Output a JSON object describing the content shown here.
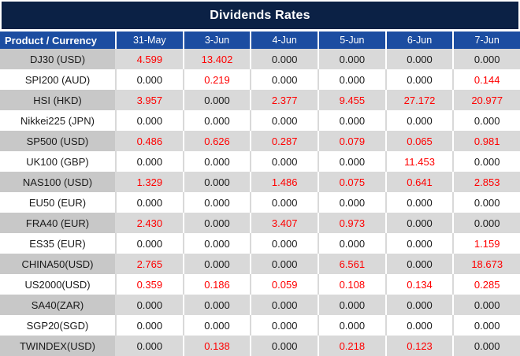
{
  "title": "Dividends Rates",
  "colors": {
    "title_bg": "#0b2145",
    "header_bg": "#1c4da1",
    "row_gray": "#d9d9d9",
    "label_gray": "#c8c8c8",
    "sep_on_white": "#d9d9d9",
    "value_red": "#ff0000",
    "value_black": "#1a1a1a"
  },
  "table": {
    "product_header": "Product / Currency",
    "date_headers": [
      "31-May",
      "3-Jun",
      "4-Jun",
      "5-Jun",
      "6-Jun",
      "7-Jun"
    ],
    "rows": [
      {
        "product": "DJ30 (USD)",
        "values": [
          "4.599",
          "13.402",
          "0.000",
          "0.000",
          "0.000",
          "0.000"
        ],
        "red": [
          1,
          1,
          0,
          0,
          0,
          0
        ]
      },
      {
        "product": "SPI200 (AUD)",
        "values": [
          "0.000",
          "0.219",
          "0.000",
          "0.000",
          "0.000",
          "0.144"
        ],
        "red": [
          0,
          1,
          0,
          0,
          0,
          1
        ]
      },
      {
        "product": "HSI (HKD)",
        "values": [
          "3.957",
          "0.000",
          "2.377",
          "9.455",
          "27.172",
          "20.977"
        ],
        "red": [
          1,
          0,
          1,
          1,
          1,
          1
        ]
      },
      {
        "product": "Nikkei225 (JPN)",
        "values": [
          "0.000",
          "0.000",
          "0.000",
          "0.000",
          "0.000",
          "0.000"
        ],
        "red": [
          0,
          0,
          0,
          0,
          0,
          0
        ]
      },
      {
        "product": "SP500 (USD)",
        "values": [
          "0.486",
          "0.626",
          "0.287",
          "0.079",
          "0.065",
          "0.981"
        ],
        "red": [
          1,
          1,
          1,
          1,
          1,
          1
        ]
      },
      {
        "product": "UK100 (GBP)",
        "values": [
          "0.000",
          "0.000",
          "0.000",
          "0.000",
          "11.453",
          "0.000"
        ],
        "red": [
          0,
          0,
          0,
          0,
          1,
          0
        ]
      },
      {
        "product": "NAS100 (USD)",
        "values": [
          "1.329",
          "0.000",
          "1.486",
          "0.075",
          "0.641",
          "2.853"
        ],
        "red": [
          1,
          0,
          1,
          1,
          1,
          1
        ]
      },
      {
        "product": "EU50 (EUR)",
        "values": [
          "0.000",
          "0.000",
          "0.000",
          "0.000",
          "0.000",
          "0.000"
        ],
        "red": [
          0,
          0,
          0,
          0,
          0,
          0
        ]
      },
      {
        "product": "FRA40 (EUR)",
        "values": [
          "2.430",
          "0.000",
          "3.407",
          "0.973",
          "0.000",
          "0.000"
        ],
        "red": [
          1,
          0,
          1,
          1,
          0,
          0
        ]
      },
      {
        "product": "ES35 (EUR)",
        "values": [
          "0.000",
          "0.000",
          "0.000",
          "0.000",
          "0.000",
          "1.159"
        ],
        "red": [
          0,
          0,
          0,
          0,
          0,
          1
        ]
      },
      {
        "product": "CHINA50(USD)",
        "values": [
          "2.765",
          "0.000",
          "0.000",
          "6.561",
          "0.000",
          "18.673"
        ],
        "red": [
          1,
          0,
          0,
          1,
          0,
          1
        ]
      },
      {
        "product": "US2000(USD)",
        "values": [
          "0.359",
          "0.186",
          "0.059",
          "0.108",
          "0.134",
          "0.285"
        ],
        "red": [
          1,
          1,
          1,
          1,
          1,
          1
        ]
      },
      {
        "product": "SA40(ZAR)",
        "values": [
          "0.000",
          "0.000",
          "0.000",
          "0.000",
          "0.000",
          "0.000"
        ],
        "red": [
          0,
          0,
          0,
          0,
          0,
          0
        ]
      },
      {
        "product": "SGP20(SGD)",
        "values": [
          "0.000",
          "0.000",
          "0.000",
          "0.000",
          "0.000",
          "0.000"
        ],
        "red": [
          0,
          0,
          0,
          0,
          0,
          0
        ]
      },
      {
        "product": "TWINDEX(USD)",
        "values": [
          "0.000",
          "0.138",
          "0.000",
          "0.218",
          "0.123",
          "0.000"
        ],
        "red": [
          0,
          1,
          0,
          1,
          1,
          0
        ]
      }
    ]
  },
  "chart_data": {
    "type": "table",
    "title": "Dividends Rates",
    "columns": [
      "Product / Currency",
      "31-May",
      "3-Jun",
      "4-Jun",
      "5-Jun",
      "6-Jun",
      "7-Jun"
    ],
    "rows": [
      [
        "DJ30 (USD)",
        4.599,
        13.402,
        0.0,
        0.0,
        0.0,
        0.0
      ],
      [
        "SPI200 (AUD)",
        0.0,
        0.219,
        0.0,
        0.0,
        0.0,
        0.144
      ],
      [
        "HSI (HKD)",
        3.957,
        0.0,
        2.377,
        9.455,
        27.172,
        20.977
      ],
      [
        "Nikkei225 (JPN)",
        0.0,
        0.0,
        0.0,
        0.0,
        0.0,
        0.0
      ],
      [
        "SP500 (USD)",
        0.486,
        0.626,
        0.287,
        0.079,
        0.065,
        0.981
      ],
      [
        "UK100 (GBP)",
        0.0,
        0.0,
        0.0,
        0.0,
        11.453,
        0.0
      ],
      [
        "NAS100 (USD)",
        1.329,
        0.0,
        1.486,
        0.075,
        0.641,
        2.853
      ],
      [
        "EU50 (EUR)",
        0.0,
        0.0,
        0.0,
        0.0,
        0.0,
        0.0
      ],
      [
        "FRA40 (EUR)",
        2.43,
        0.0,
        3.407,
        0.973,
        0.0,
        0.0
      ],
      [
        "ES35 (EUR)",
        0.0,
        0.0,
        0.0,
        0.0,
        0.0,
        1.159
      ],
      [
        "CHINA50(USD)",
        2.765,
        0.0,
        0.0,
        6.561,
        0.0,
        18.673
      ],
      [
        "US2000(USD)",
        0.359,
        0.186,
        0.059,
        0.108,
        0.134,
        0.285
      ],
      [
        "SA40(ZAR)",
        0.0,
        0.0,
        0.0,
        0.0,
        0.0,
        0.0
      ],
      [
        "SGP20(SGD)",
        0.0,
        0.0,
        0.0,
        0.0,
        0.0,
        0.0
      ],
      [
        "TWINDEX(USD)",
        0.0,
        0.138,
        0.0,
        0.218,
        0.123,
        0.0
      ]
    ],
    "styling_note": "red values indicate non-zero dividend adjustments; rows alternate gray/white starting gray"
  }
}
